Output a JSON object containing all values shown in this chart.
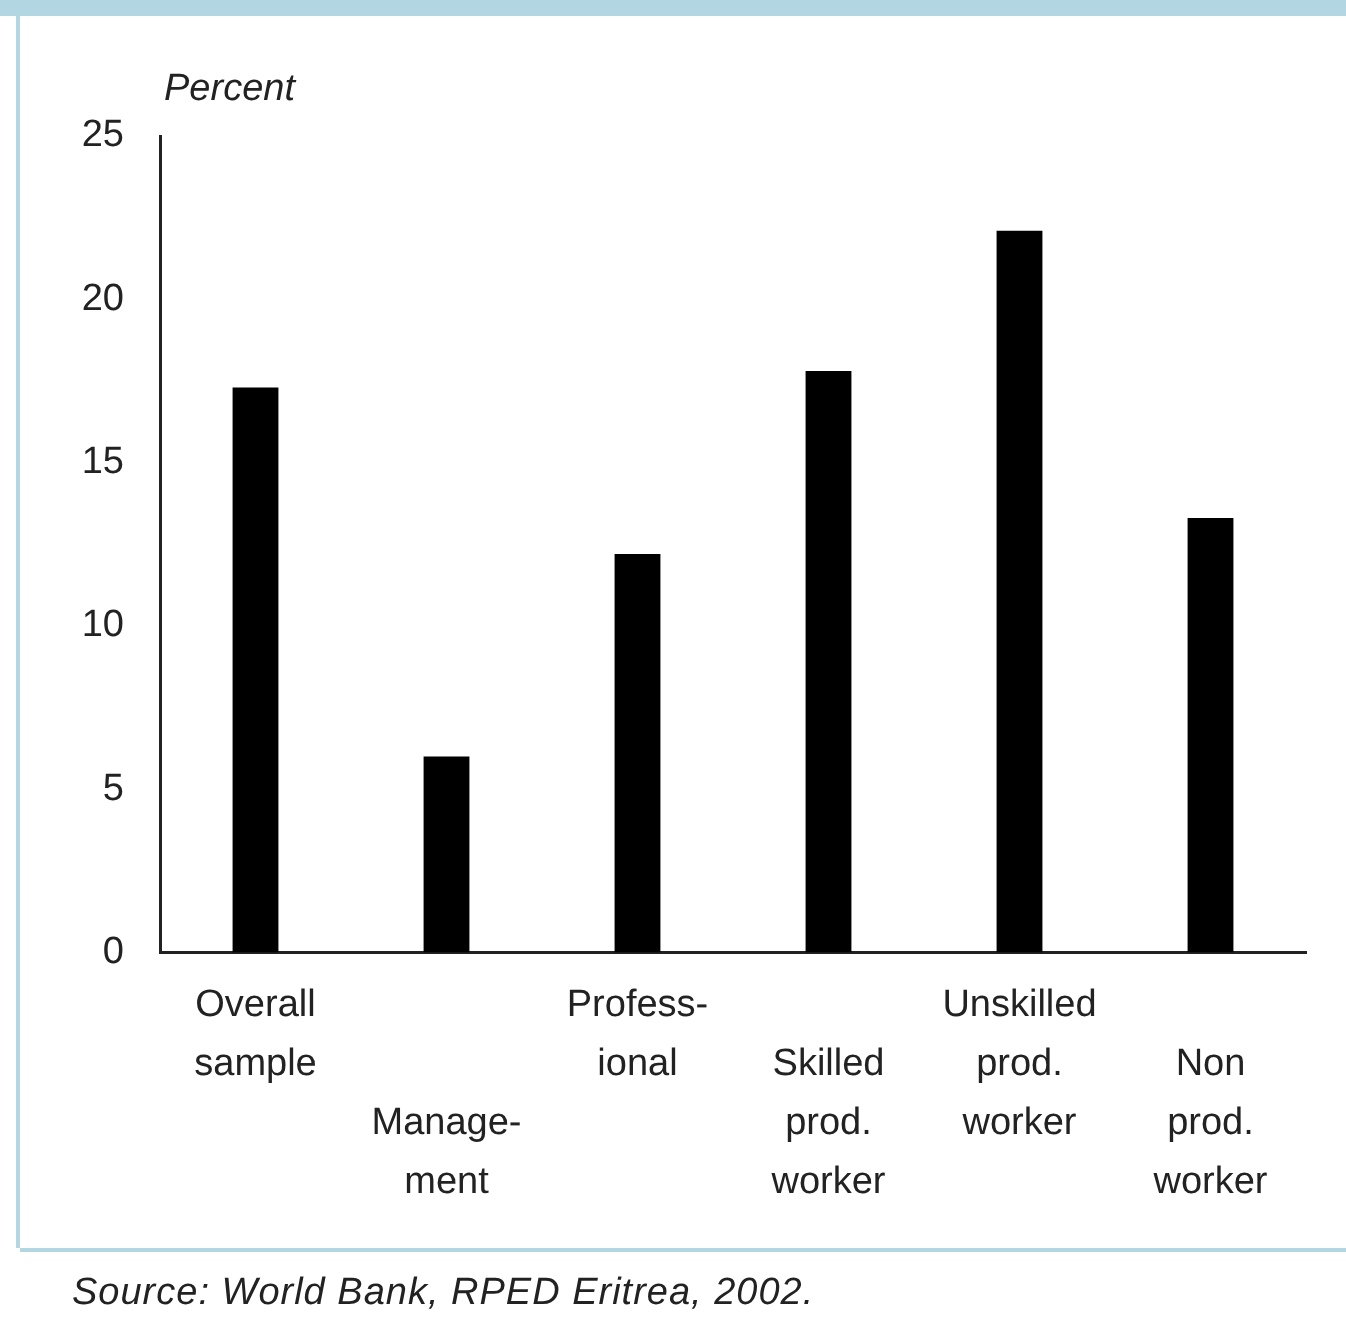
{
  "chart_data": {
    "type": "bar",
    "ylabel": "Percent",
    "categories": [
      "Overall\nsample",
      "Manage-\nment",
      "Profess-\nional",
      "Skilled\nprod.\nworker",
      "Unskilled\nprod.\nworker",
      "Non\nprod.\nworker"
    ],
    "values": [
      17.3,
      6.0,
      12.2,
      17.8,
      22.1,
      13.3
    ],
    "color": "#000000",
    "ylim": [
      0,
      25
    ],
    "yticks": [
      0,
      5,
      10,
      15,
      20,
      25
    ],
    "grid": false,
    "legend": false,
    "annotations": [
      "Source: World Bank, RPED Eritrea, 2002."
    ]
  }
}
